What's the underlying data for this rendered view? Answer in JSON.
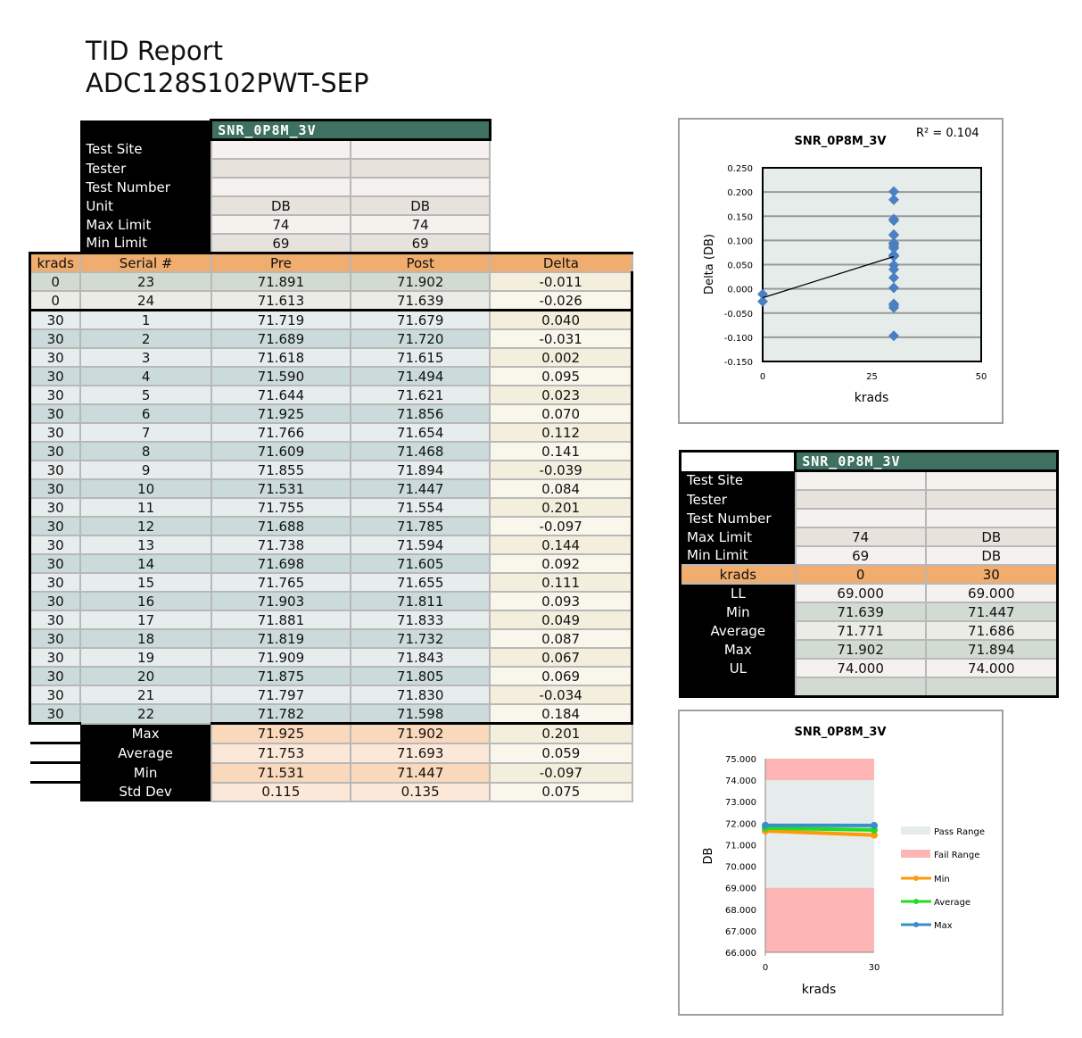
{
  "title": {
    "line1": "TID Report",
    "line2": "ADC128S102PWT-SEP"
  },
  "main_table": {
    "param": "SNR_0P8M_3V",
    "meta": [
      {
        "label": "Test Site",
        "v1": "",
        "v2": ""
      },
      {
        "label": "Tester",
        "v1": "",
        "v2": ""
      },
      {
        "label": "Test Number",
        "v1": "",
        "v2": ""
      },
      {
        "label": "Unit",
        "v1": "DB",
        "v2": "DB"
      },
      {
        "label": "Max Limit",
        "v1": "74",
        "v2": "74"
      },
      {
        "label": "Min Limit",
        "v1": "69",
        "v2": "69"
      }
    ],
    "columns": [
      "krads",
      "Serial #",
      "Pre",
      "Post",
      "Delta"
    ],
    "rows": [
      [
        "0",
        "23",
        "71.891",
        "71.902",
        "-0.011"
      ],
      [
        "0",
        "24",
        "71.613",
        "71.639",
        "-0.026"
      ],
      [
        "30",
        "1",
        "71.719",
        "71.679",
        "0.040"
      ],
      [
        "30",
        "2",
        "71.689",
        "71.720",
        "-0.031"
      ],
      [
        "30",
        "3",
        "71.618",
        "71.615",
        "0.002"
      ],
      [
        "30",
        "4",
        "71.590",
        "71.494",
        "0.095"
      ],
      [
        "30",
        "5",
        "71.644",
        "71.621",
        "0.023"
      ],
      [
        "30",
        "6",
        "71.925",
        "71.856",
        "0.070"
      ],
      [
        "30",
        "7",
        "71.766",
        "71.654",
        "0.112"
      ],
      [
        "30",
        "8",
        "71.609",
        "71.468",
        "0.141"
      ],
      [
        "30",
        "9",
        "71.855",
        "71.894",
        "-0.039"
      ],
      [
        "30",
        "10",
        "71.531",
        "71.447",
        "0.084"
      ],
      [
        "30",
        "11",
        "71.755",
        "71.554",
        "0.201"
      ],
      [
        "30",
        "12",
        "71.688",
        "71.785",
        "-0.097"
      ],
      [
        "30",
        "13",
        "71.738",
        "71.594",
        "0.144"
      ],
      [
        "30",
        "14",
        "71.698",
        "71.605",
        "0.092"
      ],
      [
        "30",
        "15",
        "71.765",
        "71.655",
        "0.111"
      ],
      [
        "30",
        "16",
        "71.903",
        "71.811",
        "0.093"
      ],
      [
        "30",
        "17",
        "71.881",
        "71.833",
        "0.049"
      ],
      [
        "30",
        "18",
        "71.819",
        "71.732",
        "0.087"
      ],
      [
        "30",
        "19",
        "71.909",
        "71.843",
        "0.067"
      ],
      [
        "30",
        "20",
        "71.875",
        "71.805",
        "0.069"
      ],
      [
        "30",
        "21",
        "71.797",
        "71.830",
        "-0.034"
      ],
      [
        "30",
        "22",
        "71.782",
        "71.598",
        "0.184"
      ]
    ],
    "summary": [
      [
        "Max",
        "71.925",
        "71.902",
        "0.201"
      ],
      [
        "Average",
        "71.753",
        "71.693",
        "0.059"
      ],
      [
        "Min",
        "71.531",
        "71.447",
        "-0.097"
      ],
      [
        "Std Dev",
        "0.115",
        "0.135",
        "0.075"
      ]
    ]
  },
  "summary_table": {
    "param": "SNR_0P8M_3V",
    "meta": [
      {
        "label": "Test Site",
        "v1": "",
        "v2": ""
      },
      {
        "label": "Tester",
        "v1": "",
        "v2": ""
      },
      {
        "label": "Test Number",
        "v1": "",
        "v2": ""
      },
      {
        "label": "Max Limit",
        "v1": "74",
        "v2": "DB"
      },
      {
        "label": "Min Limit",
        "v1": "69",
        "v2": "DB"
      }
    ],
    "krads_label": "krads",
    "krads": [
      "0",
      "30"
    ],
    "stats": [
      [
        "LL",
        "69.000",
        "69.000"
      ],
      [
        "Min",
        "71.639",
        "71.447"
      ],
      [
        "Average",
        "71.771",
        "71.686"
      ],
      [
        "Max",
        "71.902",
        "71.894"
      ],
      [
        "UL",
        "74.000",
        "74.000"
      ],
      [
        "",
        "",
        ""
      ]
    ]
  },
  "chart_data": [
    {
      "type": "scatter",
      "title": "SNR_0P8M_3V",
      "xlabel": "krads",
      "ylabel": "Delta (DB)",
      "annotation": "R² = 0.104",
      "xlim": [
        0,
        50
      ],
      "ylim": [
        -0.15,
        0.25
      ],
      "xticks": [
        "0",
        "25",
        "50"
      ],
      "yticks": [
        "0.250",
        "0.200",
        "0.150",
        "0.100",
        "0.050",
        "0.000",
        "-0.050",
        "-0.100",
        "-0.150"
      ],
      "grid": true,
      "trendline": "linear",
      "color": "#4a7fc1",
      "points": {
        "x": [
          0,
          0,
          30,
          30,
          30,
          30,
          30,
          30,
          30,
          30,
          30,
          30,
          30,
          30,
          30,
          30,
          30,
          30,
          30,
          30,
          30,
          30,
          30,
          30
        ],
        "y": [
          -0.011,
          -0.026,
          0.04,
          -0.031,
          0.002,
          0.095,
          0.023,
          0.07,
          0.112,
          0.141,
          -0.039,
          0.084,
          0.201,
          -0.097,
          0.144,
          0.092,
          0.111,
          0.093,
          0.049,
          0.087,
          0.067,
          0.069,
          -0.034,
          0.184
        ]
      }
    },
    {
      "type": "line",
      "title": "SNR_0P8M_3V",
      "xlabel": "krads",
      "ylabel": "DB",
      "x": [
        0,
        30
      ],
      "xticks": [
        "0",
        "30"
      ],
      "ylim": [
        66,
        75
      ],
      "yticks": [
        "75.000",
        "74.000",
        "73.000",
        "72.000",
        "71.000",
        "70.000",
        "69.000",
        "68.000",
        "67.000",
        "66.000"
      ],
      "pass_range": [
        69,
        74
      ],
      "legend": "right",
      "legend_entries": [
        {
          "name": "Pass Range",
          "color": "#e6eceb"
        },
        {
          "name": "Fail Range",
          "color": "#fdb5b5"
        }
      ],
      "series": [
        {
          "name": "Min",
          "values": [
            71.639,
            71.447
          ],
          "color": "#ff9a0a"
        },
        {
          "name": "Average",
          "values": [
            71.771,
            71.686
          ],
          "color": "#22dd22"
        },
        {
          "name": "Max",
          "values": [
            71.902,
            71.894
          ],
          "color": "#3a8fc8"
        }
      ]
    }
  ]
}
